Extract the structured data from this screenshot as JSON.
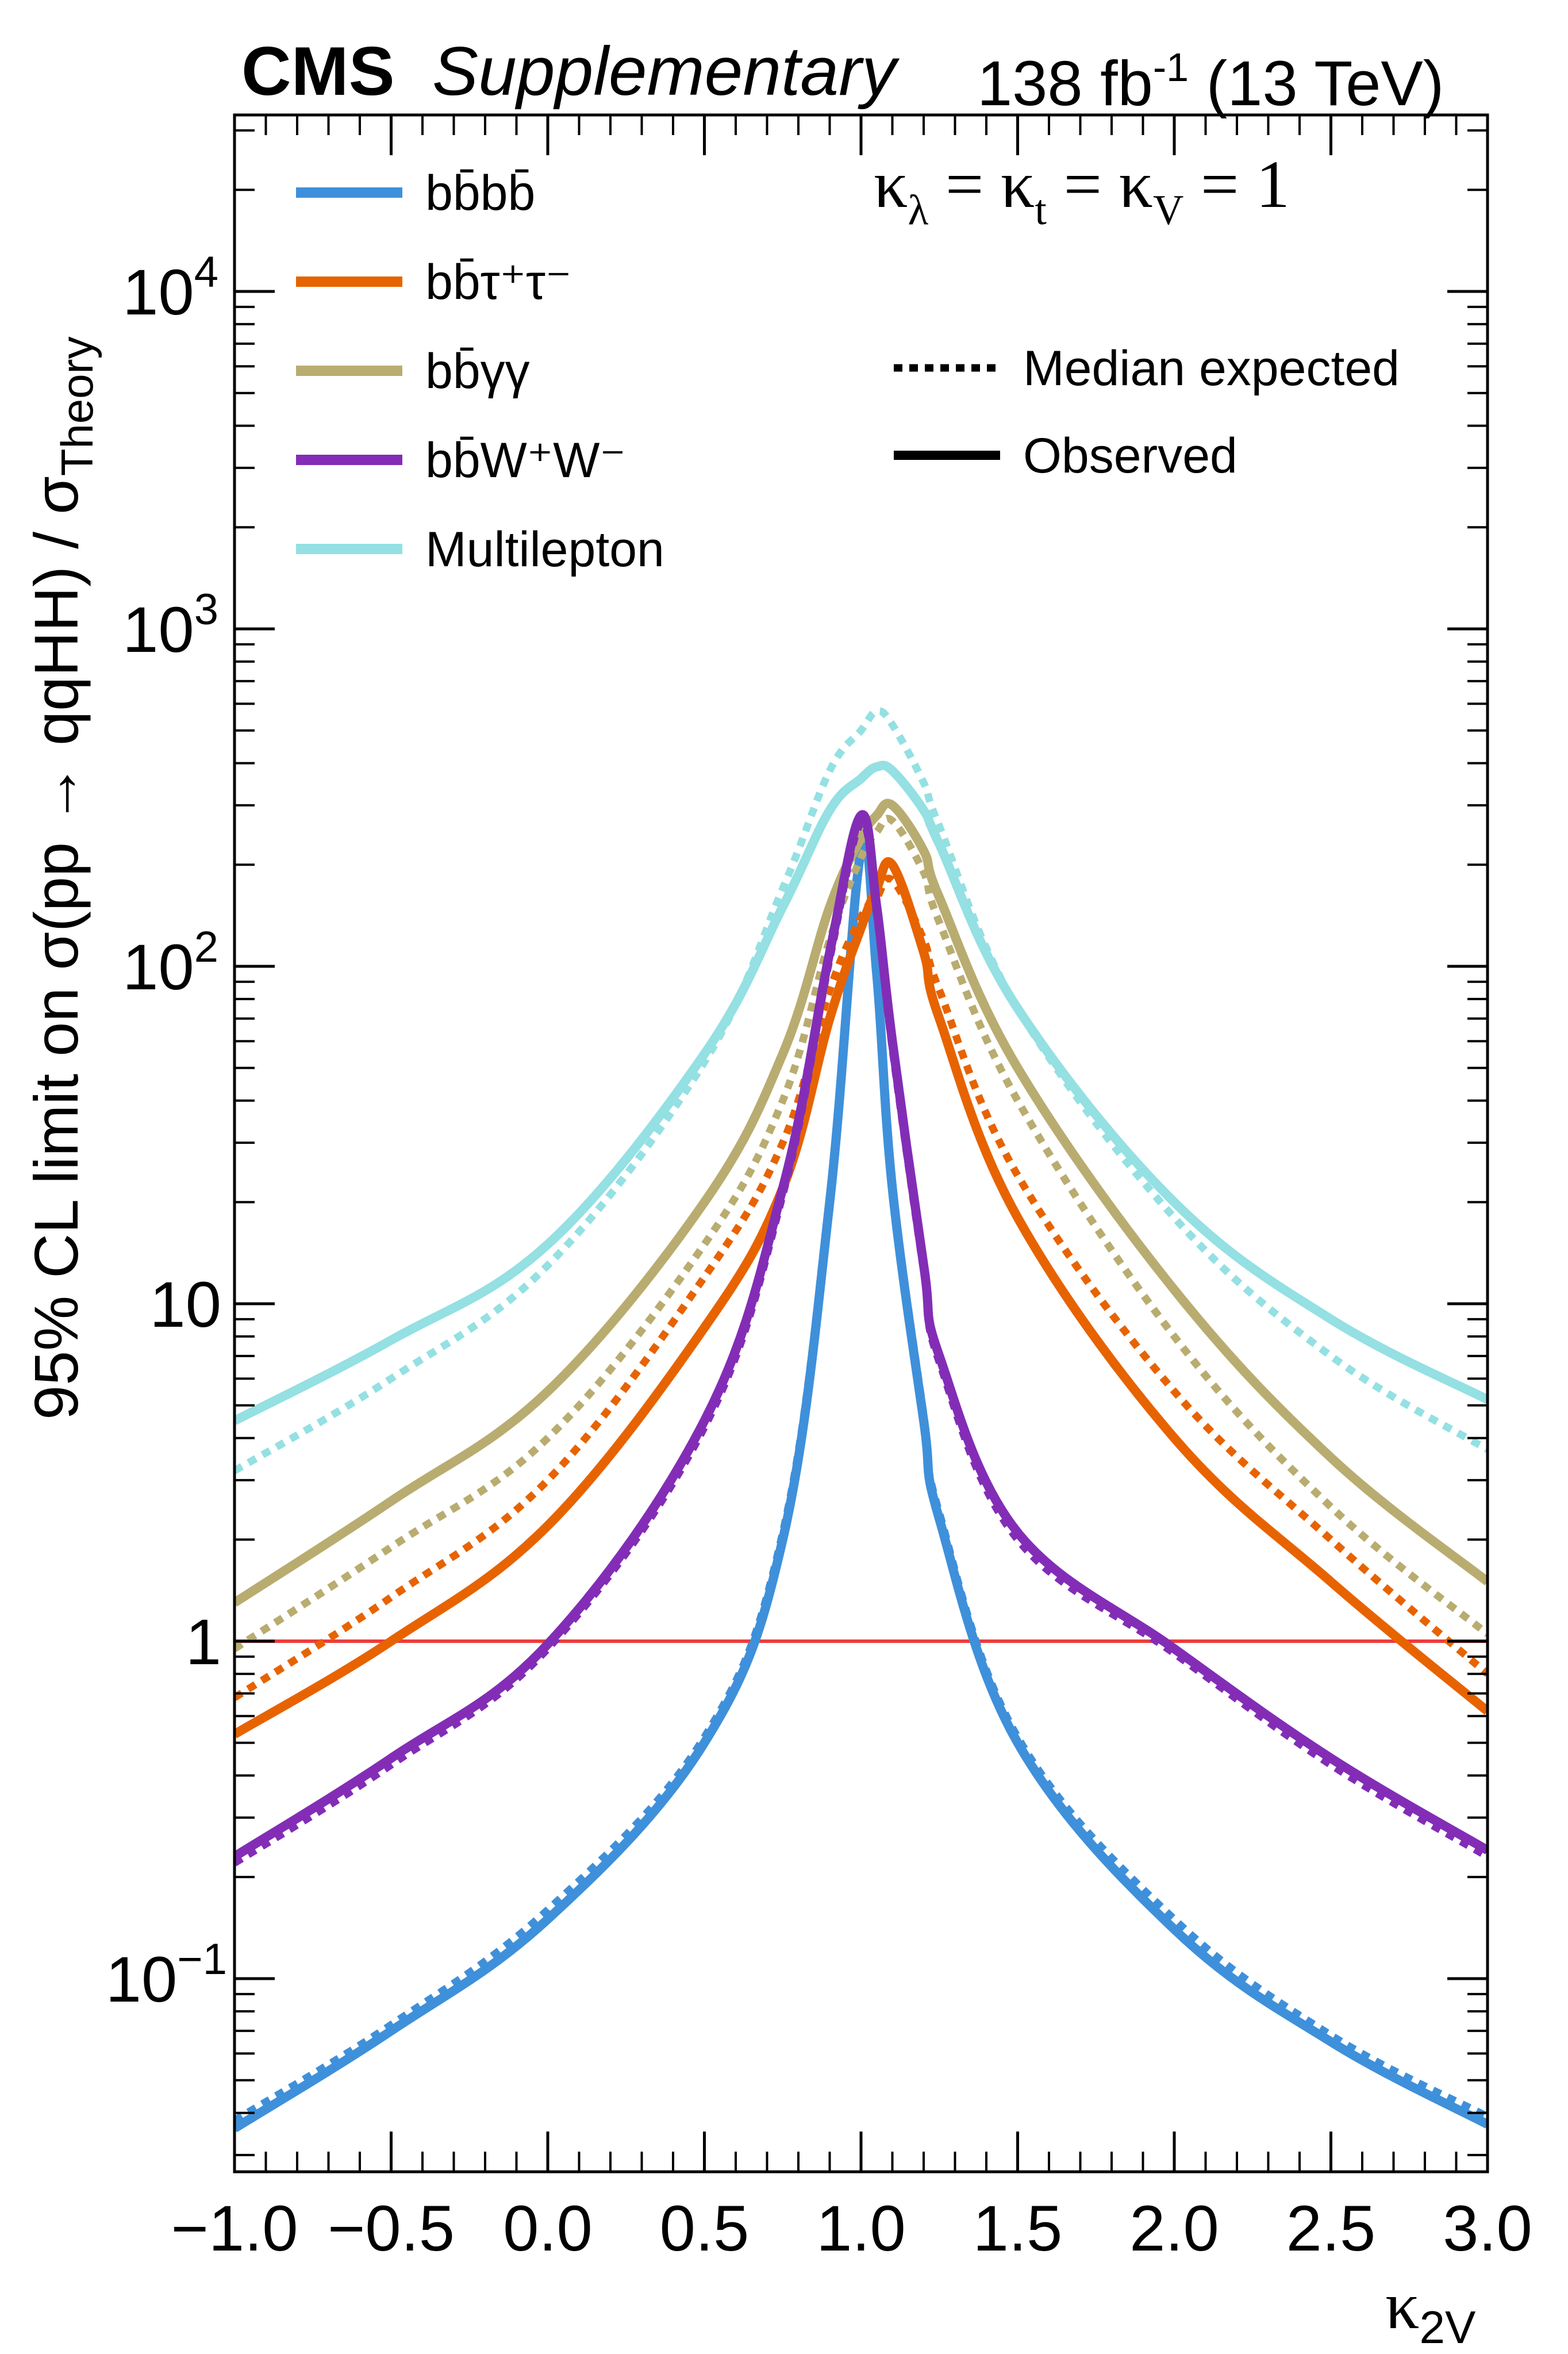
{
  "header": {
    "experiment": "CMS",
    "label": "Supplementary",
    "lumi_value": "138 fb",
    "lumi_exp": "-1",
    "energy": " (13 TeV)"
  },
  "annotation": {
    "kappa_main": "κ",
    "kappa_lambda_sub": "λ",
    "kappa_t_part": " = κ",
    "kappa_t_sub": "t",
    "kappa_v_part": " = κ",
    "kappa_v_sub": "V",
    "kappa_tail": " = 1"
  },
  "style_legend": [
    {
      "label": "Median expected",
      "dash": "dotted"
    },
    {
      "label": "Observed",
      "dash": "solid"
    }
  ],
  "chart_data": {
    "type": "line",
    "xlabel": "κ",
    "xlabel_sub": "2V",
    "ylabel": "95% CL limit on σ(pp → qqHH) / σ",
    "ylabel_sub": "Theory",
    "xlim": [
      -1.0,
      3.0
    ],
    "ylim": [
      0.03,
      30000
    ],
    "yscale": "log",
    "x_ticks": [
      "−1.0",
      "−0.5",
      "0.0",
      "0.5",
      "1.0",
      "1.5",
      "2.0",
      "2.5",
      "3.0"
    ],
    "y_ticks": [
      {
        "value": 0.1,
        "label": "10",
        "exp": "−1"
      },
      {
        "value": 1,
        "label": "1",
        "exp": ""
      },
      {
        "value": 10,
        "label": "10",
        "exp": ""
      },
      {
        "value": 100,
        "label": "10",
        "exp": "2"
      },
      {
        "value": 1000,
        "label": "10",
        "exp": "3"
      },
      {
        "value": 10000,
        "label": "10",
        "exp": "4"
      }
    ],
    "reference_line": {
      "y": 1,
      "color": "#ee3b3b"
    },
    "legend_placement": "top-left",
    "x": [
      -1.0,
      -0.5,
      0.0,
      0.5,
      0.75,
      0.9,
      1.0,
      1.05,
      1.1,
      1.2,
      1.25,
      1.5,
      2.0,
      2.5,
      3.0
    ],
    "series": [
      {
        "name": "bb̄bb̄",
        "color": "#3f90da",
        "observed": [
          0.036,
          0.07,
          0.15,
          0.5,
          2,
          20,
          220,
          95,
          22,
          4.5,
          2.3,
          0.5,
          0.14,
          0.065,
          0.037
        ],
        "expected": [
          0.038,
          0.073,
          0.16,
          0.52,
          2.1,
          21,
          230,
          100,
          23,
          4.7,
          2.4,
          0.52,
          0.15,
          0.068,
          0.039
        ]
      },
      {
        "name": "bb̄τ⁺τ⁻",
        "color": "#e76300",
        "observed": [
          0.53,
          1.0,
          2.2,
          8.5,
          22,
          70,
          130,
          170,
          200,
          110,
          70,
          18,
          4,
          1.5,
          0.62
        ],
        "expected": [
          0.68,
          1.35,
          3.0,
          12,
          30,
          85,
          140,
          160,
          180,
          120,
          85,
          24,
          5.5,
          2.0,
          0.8
        ]
      },
      {
        "name": "bb̄γγ",
        "color": "#b9ac70",
        "observed": [
          1.3,
          2.6,
          5.5,
          20,
          55,
          150,
          240,
          280,
          300,
          220,
          160,
          50,
          11,
          3.5,
          1.5
        ],
        "expected": [
          0.95,
          1.9,
          4.0,
          15,
          40,
          120,
          210,
          250,
          270,
          190,
          135,
          40,
          8,
          2.5,
          1.05
        ]
      },
      {
        "name": "bb̄W⁺W⁻",
        "color": "#832db6",
        "observed": [
          0.23,
          0.45,
          0.98,
          4.5,
          22,
          110,
          280,
          150,
          60,
          13,
          7,
          2.1,
          0.95,
          0.45,
          0.24
        ],
        "expected": [
          0.22,
          0.43,
          0.95,
          4.3,
          21,
          105,
          265,
          142,
          57,
          12.5,
          6.7,
          2.0,
          0.92,
          0.43,
          0.23
        ]
      },
      {
        "name": "Multilepton",
        "color": "#94e0e3",
        "observed": [
          4.5,
          7.8,
          15,
          55,
          150,
          290,
          360,
          390,
          380,
          290,
          230,
          75,
          20,
          9,
          5.2
        ],
        "expected": [
          3.2,
          6.0,
          13,
          52,
          170,
          380,
          500,
          570,
          520,
          350,
          260,
          75,
          18,
          7,
          3.7
        ]
      }
    ]
  }
}
